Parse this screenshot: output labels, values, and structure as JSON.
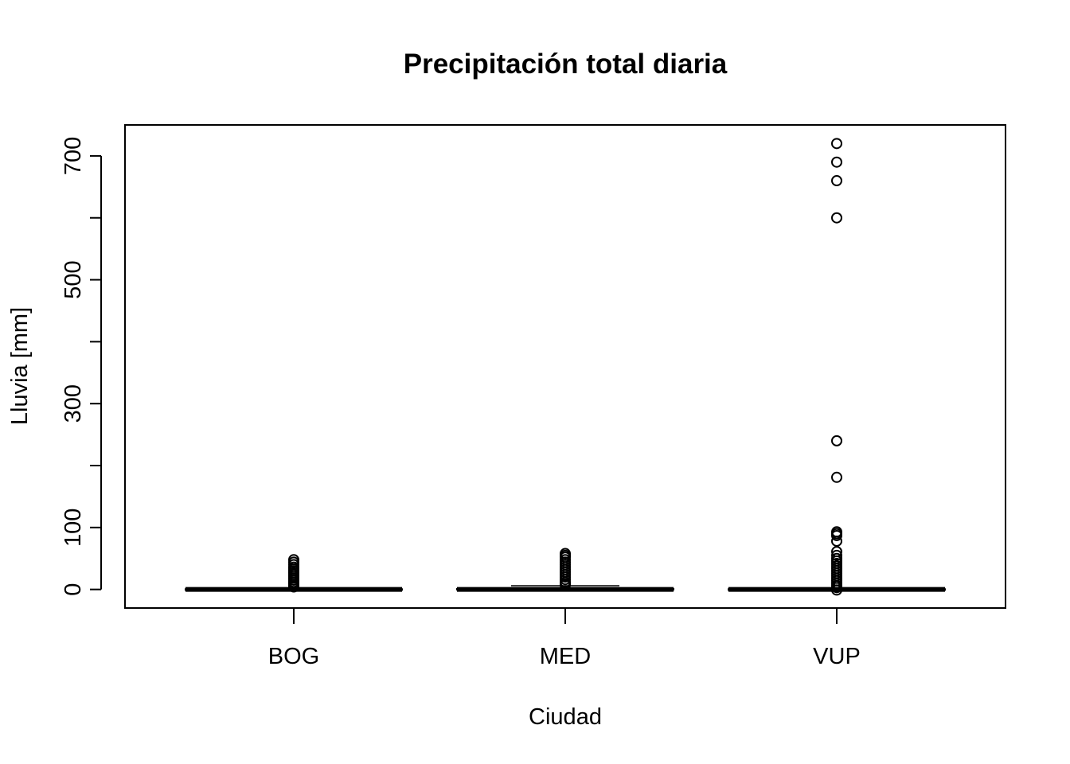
{
  "chart_data": {
    "type": "boxplot",
    "title": "Precipitación total diaria",
    "xlabel": "Ciudad",
    "ylabel": "Lluvia [mm]",
    "ylim": [
      -30,
      750
    ],
    "yticks": [
      0,
      100,
      300,
      500,
      700
    ],
    "ytick_labels": [
      "0",
      "100",
      "300",
      "500",
      "700"
    ],
    "categories": [
      "BOG",
      "MED",
      "VUP"
    ],
    "grid": false,
    "legend": "none",
    "series": [
      {
        "category": "BOG",
        "min": 0,
        "q1": 0,
        "median": 0,
        "q3": 0.5,
        "max": 1,
        "outliers": [
          48,
          44,
          40,
          36,
          33,
          30,
          27,
          24,
          21,
          18,
          15,
          12,
          9,
          6,
          4
        ]
      },
      {
        "category": "MED",
        "min": 0,
        "q1": 0,
        "median": 0,
        "q3": 1,
        "max": 6,
        "outliers": [
          58,
          55,
          52,
          48,
          44,
          40,
          36,
          32,
          28,
          24,
          20,
          16,
          12,
          9,
          7
        ]
      },
      {
        "category": "VUP",
        "min": 0,
        "q1": 0,
        "median": 0,
        "q3": 0.5,
        "max": 1,
        "outliers": [
          720,
          690,
          660,
          600,
          240,
          181,
          93,
          90,
          87,
          78,
          61,
          55,
          50,
          46,
          42,
          38,
          34,
          30,
          26,
          22,
          18,
          14,
          10,
          6,
          3,
          -1
        ]
      }
    ]
  }
}
